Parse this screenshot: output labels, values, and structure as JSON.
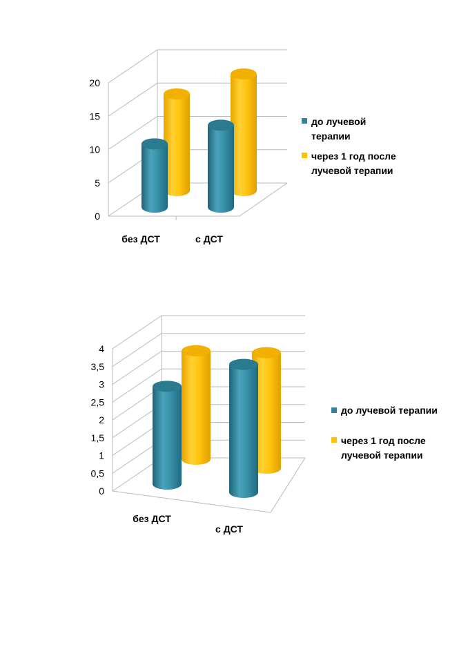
{
  "chart_data": [
    {
      "type": "bar",
      "style": "3d-cylinder",
      "categories": [
        "без ДСТ",
        "с ДСТ"
      ],
      "ylim": [
        0,
        20
      ],
      "yticks": [
        "0",
        "5",
        "10",
        "15",
        "20"
      ],
      "grid": true,
      "legend_position": "right",
      "series": [
        {
          "name": "до лучевой терапии",
          "legend_lines": [
            "до лучевой",
            "терапии"
          ],
          "color": "#31849b",
          "values": [
            9.5,
            12.3
          ]
        },
        {
          "name": "через 1 год после лучевой терапии",
          "legend_lines": [
            "через 1 год после",
            "лучевой терапии"
          ],
          "color": "#ffc000",
          "values": [
            14.5,
            17.5
          ]
        }
      ]
    },
    {
      "type": "bar",
      "style": "3d-cylinder",
      "categories": [
        "без ДСТ",
        "с ДСТ"
      ],
      "ylim": [
        0,
        4
      ],
      "yticks": [
        "0",
        "0,5",
        "1",
        "1,5",
        "2",
        "2,5",
        "3",
        "3,5",
        "4"
      ],
      "grid": true,
      "legend_position": "right",
      "series": [
        {
          "name": "до лучевой терапии",
          "legend_lines": [
            "до лучевой терапии"
          ],
          "color": "#31849b",
          "values": [
            2.75,
            3.6
          ]
        },
        {
          "name": "через 1 год после лучевой терапии",
          "legend_lines": [
            "через 1 год после",
            "лучевой терапии"
          ],
          "color": "#ffc000",
          "values": [
            3.05,
            3.25
          ]
        }
      ]
    }
  ]
}
